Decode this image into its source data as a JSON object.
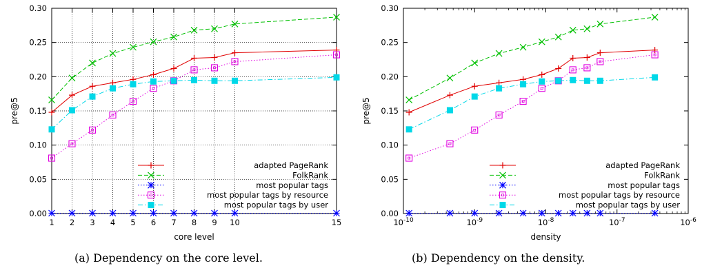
{
  "chart_data": [
    {
      "type": "line",
      "xscale": "linear",
      "xlabel": "core level",
      "ylabel": "pre@5",
      "xlim": [
        1,
        15
      ],
      "ylim": [
        0,
        0.3
      ],
      "grid": true,
      "legend_position": "bottom-right",
      "x": [
        1,
        2,
        3,
        4,
        5,
        6,
        7,
        8,
        9,
        10,
        15
      ],
      "xticks": [
        1,
        2,
        3,
        4,
        5,
        6,
        7,
        8,
        9,
        10,
        15
      ],
      "xtick_labels": [
        "1",
        "2",
        "3",
        "4",
        "5",
        "6",
        "7",
        "8",
        "9",
        "10",
        "15"
      ],
      "yticks": [
        0,
        0.05,
        0.1,
        0.15,
        0.2,
        0.25,
        0.3
      ],
      "ytick_labels": [
        "0.00",
        "0.05",
        "0.10",
        "0.15",
        "0.20",
        "0.25",
        "0.30"
      ],
      "series": [
        {
          "name": "adapted PageRank",
          "color": "#e00000",
          "marker": "plus",
          "dash": "solid",
          "values": [
            0.148,
            0.173,
            0.186,
            0.191,
            0.196,
            0.203,
            0.212,
            0.227,
            0.228,
            0.235,
            0.239
          ]
        },
        {
          "name": "FolkRank",
          "color": "#00c000",
          "marker": "cross",
          "dash": "dashed",
          "values": [
            0.166,
            0.198,
            0.22,
            0.234,
            0.243,
            0.251,
            0.258,
            0.268,
            0.27,
            0.277,
            0.287
          ]
        },
        {
          "name": "most popular tags",
          "color": "#0000ff",
          "marker": "star",
          "dash": "dotted",
          "values": [
            0.0005,
            0.0005,
            0.0005,
            0.0005,
            0.0005,
            0.0005,
            0.0005,
            0.0005,
            0.0005,
            0.0005,
            0.0005
          ]
        },
        {
          "name": "most popular tags by resource",
          "color": "#e000e0",
          "marker": "square-open",
          "dash": "dotted",
          "values": [
            0.081,
            0.102,
            0.122,
            0.144,
            0.164,
            0.183,
            0.194,
            0.21,
            0.213,
            0.222,
            0.232
          ]
        },
        {
          "name": "most popular tags by user",
          "color": "#00d8e8",
          "marker": "square-filled",
          "dash": "dashdot",
          "values": [
            0.123,
            0.151,
            0.171,
            0.183,
            0.189,
            0.193,
            0.194,
            0.195,
            0.194,
            0.194,
            0.199
          ]
        }
      ]
    },
    {
      "type": "line",
      "xscale": "log",
      "xlabel": "density",
      "ylabel": "pre@5",
      "xlim": [
        1e-10,
        1e-06
      ],
      "ylim": [
        0,
        0.3
      ],
      "grid": false,
      "legend_position": "bottom-right",
      "x": [
        1.2e-10,
        4.5e-10,
        1e-09,
        2.2e-09,
        4.8e-09,
        8.8e-09,
        1.5e-08,
        2.4e-08,
        3.8e-08,
        5.8e-08,
        3.4e-07
      ],
      "xticks": [
        1e-10,
        1e-09,
        1e-08,
        1e-07,
        1e-06
      ],
      "xtick_labels": [
        {
          "base": "10",
          "exp": "-10"
        },
        {
          "base": "10",
          "exp": "-9"
        },
        {
          "base": "10",
          "exp": "-8"
        },
        {
          "base": "10",
          "exp": "-7"
        },
        {
          "base": "10",
          "exp": "-6"
        }
      ],
      "yticks": [
        0,
        0.05,
        0.1,
        0.15,
        0.2,
        0.25,
        0.3
      ],
      "ytick_labels": [
        "0.00",
        "0.05",
        "0.10",
        "0.15",
        "0.20",
        "0.25",
        "0.30"
      ],
      "series": [
        {
          "name": "adapted PageRank",
          "color": "#e00000",
          "marker": "plus",
          "dash": "solid",
          "values": [
            0.148,
            0.173,
            0.186,
            0.191,
            0.196,
            0.203,
            0.212,
            0.227,
            0.228,
            0.235,
            0.239
          ]
        },
        {
          "name": "FolkRank",
          "color": "#00c000",
          "marker": "cross",
          "dash": "dashed",
          "values": [
            0.166,
            0.198,
            0.22,
            0.234,
            0.243,
            0.251,
            0.258,
            0.268,
            0.27,
            0.277,
            0.287
          ]
        },
        {
          "name": "most popular tags",
          "color": "#0000ff",
          "marker": "star",
          "dash": "dotted",
          "values": [
            0.0005,
            0.0005,
            0.0005,
            0.0005,
            0.0005,
            0.0005,
            0.0005,
            0.0005,
            0.0005,
            0.0005,
            0.0005
          ]
        },
        {
          "name": "most popular tags by resource",
          "color": "#e000e0",
          "marker": "square-open",
          "dash": "dotted",
          "values": [
            0.081,
            0.102,
            0.122,
            0.144,
            0.164,
            0.183,
            0.194,
            0.21,
            0.213,
            0.222,
            0.232
          ]
        },
        {
          "name": "most popular tags by user",
          "color": "#00d8e8",
          "marker": "square-filled",
          "dash": "dashdot",
          "values": [
            0.123,
            0.151,
            0.171,
            0.183,
            0.189,
            0.193,
            0.194,
            0.195,
            0.194,
            0.194,
            0.199
          ]
        }
      ]
    }
  ],
  "captions": [
    "(a) Dependency on the core level.",
    "(b) Dependency on the density."
  ]
}
